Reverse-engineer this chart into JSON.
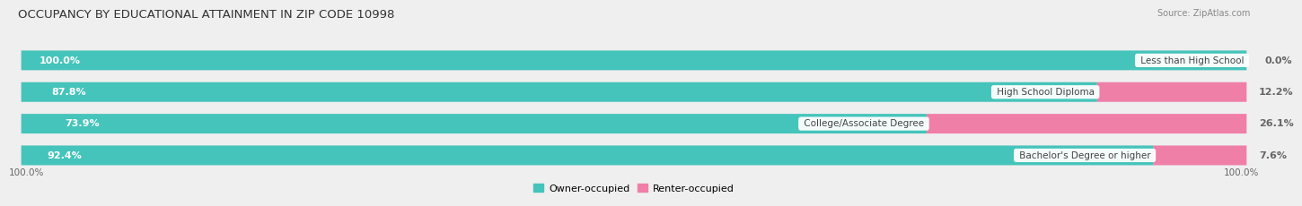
{
  "title": "OCCUPANCY BY EDUCATIONAL ATTAINMENT IN ZIP CODE 10998",
  "source": "Source: ZipAtlas.com",
  "categories": [
    "Less than High School",
    "High School Diploma",
    "College/Associate Degree",
    "Bachelor's Degree or higher"
  ],
  "owner_pct": [
    100.0,
    87.8,
    73.9,
    92.4
  ],
  "renter_pct": [
    0.0,
    12.2,
    26.1,
    7.6
  ],
  "owner_color": "#45C4BB",
  "renter_color": "#F07FA8",
  "background_color": "#EFEFEF",
  "bar_bg_color": "#E2E2E2",
  "bar_height": 0.62,
  "title_fontsize": 9.5,
  "label_fontsize": 8.0,
  "tick_fontsize": 7.5,
  "source_fontsize": 7.0,
  "legend_fontsize": 8.0,
  "left_label_color": "#FFFFFF",
  "right_label_color": "#666666",
  "cat_label_bg": "#FFFFFF",
  "cat_label_color": "#444444",
  "bottom_tick_left": "100.0%",
  "bottom_tick_right": "100.0%"
}
